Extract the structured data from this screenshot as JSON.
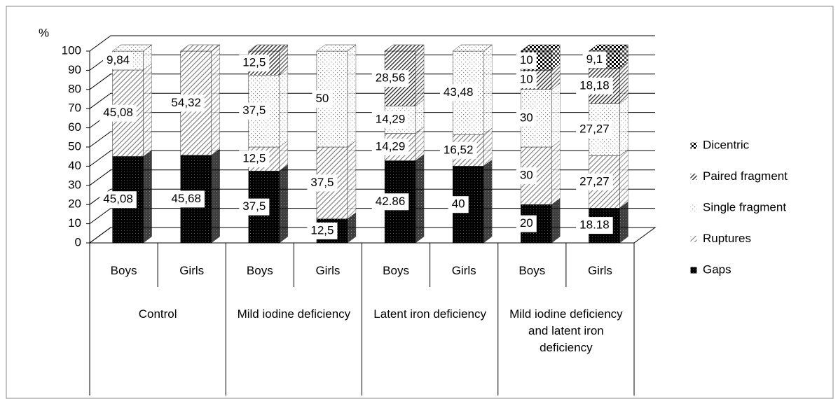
{
  "chart_data": {
    "type": "stacked-bar-3d",
    "y_label": "%",
    "categories": [
      "Boys",
      "Girls",
      "Boys",
      "Girls",
      "Boys",
      "Girls",
      "Boys",
      "Girls"
    ],
    "groups": [
      "Control",
      "Mild iodine deficiency",
      "Latent iron deficiency",
      "Mild iodine deficiency and latent iron deficiency"
    ],
    "ylim": [
      0,
      100
    ],
    "yticks": [
      0,
      10,
      20,
      30,
      40,
      50,
      60,
      70,
      80,
      90,
      100
    ],
    "grid": true,
    "legend": "right",
    "series": [
      {
        "name": "Gaps",
        "color": "#000000",
        "pattern": "dense",
        "values": [
          45.08,
          45.68,
          37.5,
          12.5,
          42.86,
          40,
          20,
          18.18
        ],
        "value_labels": [
          "45,08",
          "45,68",
          "37,5",
          "12,5",
          "42.86",
          "40",
          "20",
          "18.18"
        ]
      },
      {
        "name": "Ruptures",
        "color": "#000000",
        "pattern": "hatch",
        "values": [
          45.08,
          54.32,
          12.5,
          37.5,
          14.29,
          16.52,
          30,
          27.27
        ],
        "value_labels": [
          "45,08",
          "54,32",
          "12,5",
          "37,5",
          "14,29",
          "16,52",
          "30",
          "27,27"
        ]
      },
      {
        "name": "Single fragment",
        "color": "#000000",
        "pattern": "dots",
        "values": [
          9.84,
          0,
          37.5,
          50,
          14.29,
          43.48,
          30,
          27.27
        ],
        "value_labels": [
          "9,84",
          null,
          "37,5",
          "50",
          "14,29",
          "43,48",
          "30",
          "27,27"
        ]
      },
      {
        "name": "Paired fragment",
        "color": "#000000",
        "pattern": "darkhatch",
        "values": [
          0,
          0,
          12.5,
          0,
          28.56,
          0,
          10,
          18.18
        ],
        "value_labels": [
          null,
          null,
          "12,5",
          null,
          "28,56",
          null,
          "10",
          "18,18"
        ]
      },
      {
        "name": "Dicentric",
        "color": "#000000",
        "pattern": "checker",
        "values": [
          0,
          0,
          0,
          0,
          0,
          0,
          10,
          9.1
        ],
        "value_labels": [
          null,
          null,
          null,
          null,
          null,
          null,
          "10",
          "9,1"
        ]
      }
    ]
  }
}
